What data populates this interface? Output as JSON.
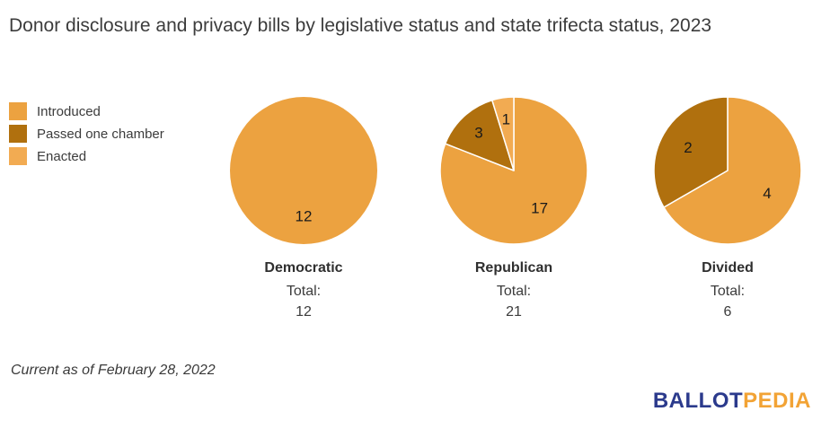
{
  "title": "Donor disclosure and privacy bills by legislative status and state trifecta status, 2023",
  "footnote": "Current as of February 28, 2022",
  "logo": {
    "part1": "BALLOT",
    "part2": "PEDIA",
    "part1_color": "#2b3a8c",
    "part2_color": "#f2a335"
  },
  "legend": [
    {
      "label": "Introduced",
      "color": "#eca240"
    },
    {
      "label": "Passed one chamber",
      "color": "#b0700e"
    },
    {
      "label": "Enacted",
      "color": "#f2ab52"
    }
  ],
  "chart_data": {
    "type": "pie",
    "title": "Donor disclosure and privacy bills by legislative status and state trifecta status, 2023",
    "legend_position": "left",
    "series_labels": [
      "Introduced",
      "Passed one chamber",
      "Enacted"
    ],
    "colors": [
      "#eca240",
      "#b0700e",
      "#f2ab52"
    ],
    "label_color": "#1a1a1a",
    "pies": [
      {
        "category": "Democratic",
        "total_label": "Total:",
        "total": 12,
        "values": [
          12,
          0,
          0
        ]
      },
      {
        "category": "Republican",
        "total_label": "Total:",
        "total": 21,
        "values": [
          17,
          3,
          1
        ]
      },
      {
        "category": "Divided",
        "total_label": "Total:",
        "total": 6,
        "values": [
          4,
          2,
          0
        ]
      }
    ]
  }
}
